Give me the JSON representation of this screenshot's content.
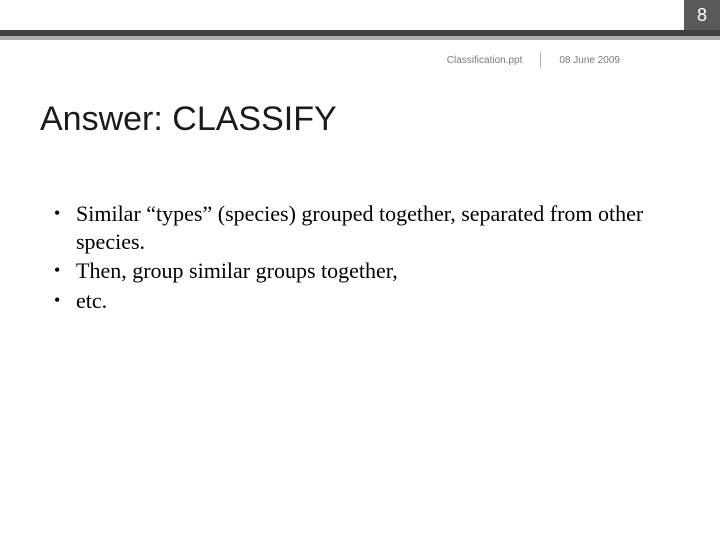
{
  "colors": {
    "page_number_bg": "#595959",
    "header_bar_dark": "#404040",
    "header_bar_light": "#a8b0b0",
    "page_number_text": "#ffffff",
    "meta_text": "#7a7a7a",
    "title_text": "#1a1a1a",
    "body_text": "#000000",
    "background": "#ffffff"
  },
  "page_number": "8",
  "meta": {
    "filename": "Classification.ppt",
    "date": "08 June 2009"
  },
  "title": "Answer:  CLASSIFY",
  "bullets": [
    "Similar “types” (species) grouped together, separated from other species.",
    "Then, group similar groups together,",
    "etc."
  ],
  "typography": {
    "title_fontsize": 34,
    "body_fontsize": 22,
    "meta_fontsize": 10,
    "page_number_fontsize": 18
  }
}
